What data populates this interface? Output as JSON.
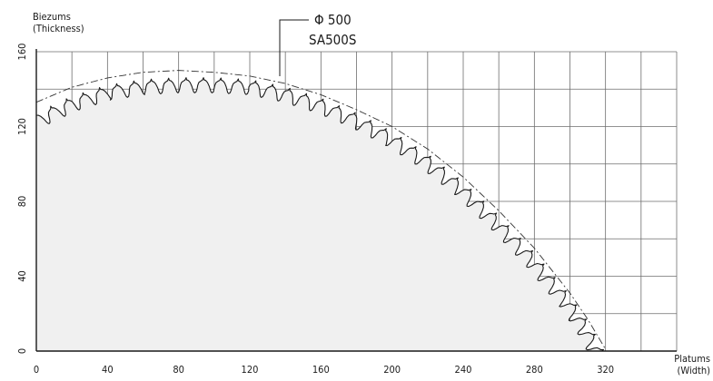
{
  "chart_data": {
    "type": "line",
    "annotation": {
      "line1": "Φ 500",
      "line2": "SA500S"
    },
    "y_axis": {
      "title_line1": "Biezums",
      "title_line2": "(Thickness)",
      "range": [
        0,
        160
      ],
      "ticks": [
        0,
        40,
        80,
        120,
        160
      ]
    },
    "x_axis": {
      "title_line1": "Platums",
      "title_line2": "(Width)",
      "range": [
        0,
        360
      ],
      "ticks": [
        0,
        40,
        80,
        120,
        160,
        200,
        240,
        280,
        320
      ]
    },
    "grid": true,
    "grid_step_x": 20,
    "grid_step_y": 20,
    "series": [
      {
        "points": [
          {
            "x": 0,
            "y": 126
          },
          {
            "x": 20,
            "y": 135
          },
          {
            "x": 40,
            "y": 141
          },
          {
            "x": 60,
            "y": 144
          },
          {
            "x": 80,
            "y": 145
          },
          {
            "x": 100,
            "y": 145
          },
          {
            "x": 120,
            "y": 144
          },
          {
            "x": 140,
            "y": 140
          },
          {
            "x": 160,
            "y": 134
          },
          {
            "x": 180,
            "y": 126
          },
          {
            "x": 200,
            "y": 116
          },
          {
            "x": 220,
            "y": 104
          },
          {
            "x": 240,
            "y": 89
          },
          {
            "x": 260,
            "y": 71
          },
          {
            "x": 280,
            "y": 51
          },
          {
            "x": 300,
            "y": 28
          },
          {
            "x": 310,
            "y": 14
          },
          {
            "x": 318,
            "y": 0
          }
        ],
        "teeth_count": 39
      },
      {
        "style": "dash-dot",
        "points": [
          {
            "x": 0,
            "y": 133
          },
          {
            "x": 20,
            "y": 141
          },
          {
            "x": 40,
            "y": 146
          },
          {
            "x": 60,
            "y": 149
          },
          {
            "x": 80,
            "y": 150
          },
          {
            "x": 100,
            "y": 149
          },
          {
            "x": 120,
            "y": 147
          },
          {
            "x": 140,
            "y": 143
          },
          {
            "x": 160,
            "y": 137
          },
          {
            "x": 180,
            "y": 129
          },
          {
            "x": 200,
            "y": 120
          },
          {
            "x": 220,
            "y": 108
          },
          {
            "x": 240,
            "y": 93
          },
          {
            "x": 260,
            "y": 75
          },
          {
            "x": 280,
            "y": 55
          },
          {
            "x": 300,
            "y": 31
          },
          {
            "x": 310,
            "y": 17
          },
          {
            "x": 320,
            "y": 1
          }
        ]
      }
    ]
  }
}
